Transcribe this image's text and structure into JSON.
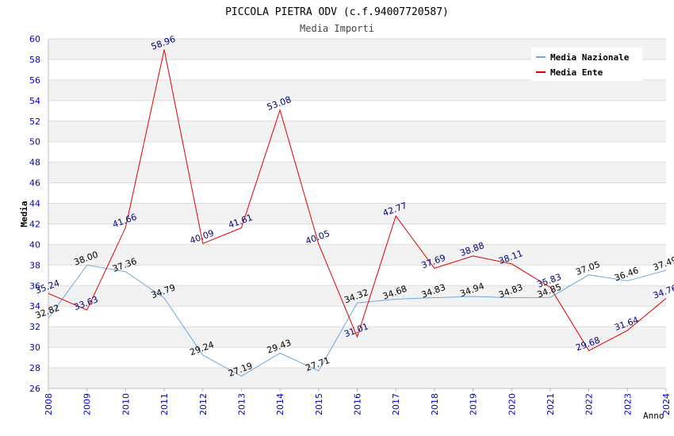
{
  "chart_data": {
    "type": "line",
    "title": "PICCOLA PIETRA ODV (c.f.94007720587)",
    "subtitle": "Media Importi",
    "xlabel": "Anno",
    "ylabel": "Media",
    "ylim": [
      26,
      60
    ],
    "ytick_step": 2,
    "categories": [
      "2008",
      "2009",
      "2010",
      "2011",
      "2012",
      "2013",
      "2014",
      "2015",
      "2016",
      "2017",
      "2018",
      "2019",
      "2020",
      "2021",
      "2022",
      "2023",
      "2024"
    ],
    "series": [
      {
        "name": "Media Nazionale",
        "color": "#6fa8dc",
        "label_color": "#000000",
        "values": [
          32.82,
          38.0,
          37.36,
          34.79,
          29.24,
          27.19,
          29.43,
          27.71,
          34.32,
          34.68,
          34.83,
          34.94,
          34.83,
          34.85,
          37.05,
          36.46,
          37.49
        ]
      },
      {
        "name": "Media Ente",
        "color": "#e00000",
        "label_color": "#000080",
        "values": [
          35.24,
          33.63,
          41.66,
          58.96,
          40.09,
          41.61,
          53.08,
          40.05,
          31.01,
          42.77,
          37.69,
          38.88,
          38.11,
          35.83,
          29.68,
          31.64,
          34.76
        ]
      }
    ],
    "legend_position": "top-right",
    "grid": true,
    "colors": {
      "axis_tick_text": "#0000cc",
      "band": "#f2f2f2",
      "gridline": "#dcdcdc"
    }
  }
}
